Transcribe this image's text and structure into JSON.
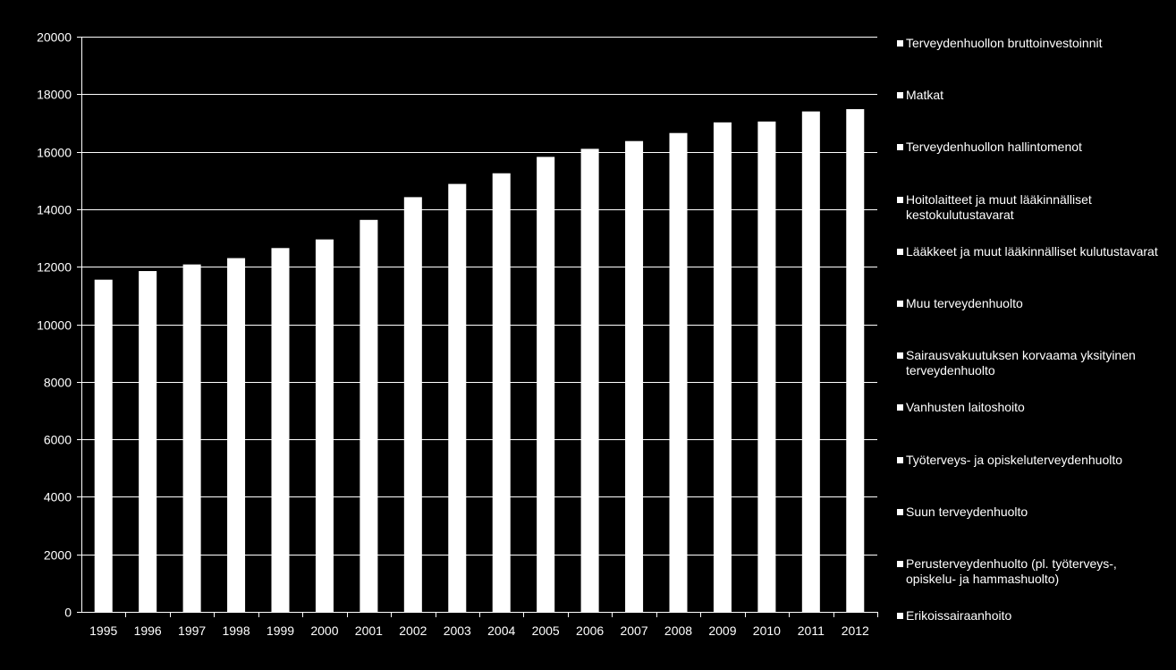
{
  "chart_data": {
    "type": "bar",
    "title": "",
    "xlabel": "",
    "ylabel": "",
    "categories": [
      "1995",
      "1996",
      "1997",
      "1998",
      "1999",
      "2000",
      "2001",
      "2002",
      "2003",
      "2004",
      "2005",
      "2006",
      "2007",
      "2008",
      "2009",
      "2010",
      "2011",
      "2012"
    ],
    "values": [
      11550,
      11850,
      12080,
      12300,
      12650,
      12950,
      13630,
      14420,
      14880,
      15250,
      15820,
      16100,
      16370,
      16650,
      17020,
      17050,
      17400,
      17480
    ],
    "ylim": [
      0,
      20000
    ],
    "y_ticks": [
      "0",
      "2000",
      "4000",
      "6000",
      "8000",
      "10000",
      "12000",
      "14000",
      "16000",
      "18000",
      "20000"
    ],
    "grid": true,
    "legend_position": "right",
    "legend": [
      "Terveydenhuollon bruttoinvestoinnit",
      "Matkat",
      "Terveydenhuollon hallintomenot",
      "Hoitolaitteet ja muut lääkinnälliset kestokulutustavarat",
      "Lääkkeet ja muut lääkinnälliset kulutustavarat",
      "Muu terveydenhuolto",
      "Sairausvakuutuksen korvaama yksityinen terveydenhuolto",
      "Vanhusten laitoshoito",
      "Työterveys- ja opiskeluterveydenhuolto",
      "Suun terveydenhuolto",
      "Perusterveydenhuolto (pl. työterveys-, opiskelu- ja hammashuolto)",
      "Erikoissairaanhoito"
    ],
    "colors": {
      "background": "#000000",
      "bar": "#ffffff",
      "grid": "#ffffff",
      "text": "#ffffff"
    }
  }
}
